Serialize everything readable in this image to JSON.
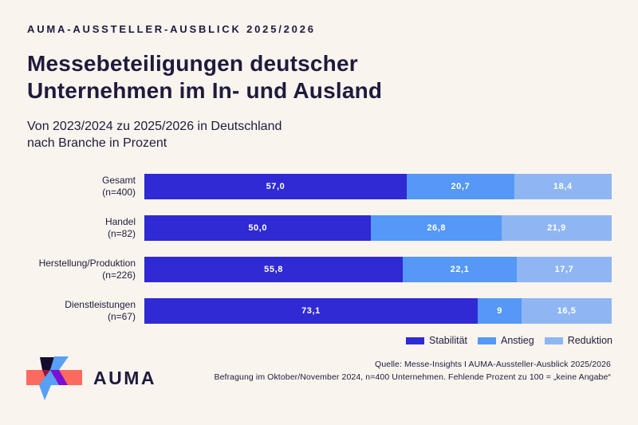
{
  "page": {
    "background": "#f9f4ee",
    "text_color": "#201a3c"
  },
  "header": {
    "kicker": "AUMA-AUSSTELLER-AUSBLICK 2025/2026",
    "title": "Messebeteiligungen deutscher\nUnternehmen im In- und Ausland",
    "subtitle": "Von 2023/2024 zu 2025/2026 in Deutschland\nnach Branche in Prozent"
  },
  "chart_data": {
    "type": "bar",
    "orientation": "horizontal_stacked",
    "unit": "percent",
    "xlim": [
      0,
      100
    ],
    "grid": false,
    "legend_position": "bottom_right",
    "render_note": "each_row_rendered_full_width_segments_proportional",
    "categories": [
      "Gesamt\n(n=400)",
      "Handel\n(n=82)",
      "Herstellung/Produktion\n(n=226)",
      "Dienstleistungen\n(n=67)"
    ],
    "series": [
      {
        "name": "Stabilität",
        "color": "#2f2ad3",
        "values": [
          57.0,
          50.0,
          55.8,
          73.1
        ],
        "labels": [
          "57,0",
          "50,0",
          "55,8",
          "73,1"
        ]
      },
      {
        "name": "Anstieg",
        "color": "#5598f6",
        "values": [
          20.7,
          26.8,
          22.1,
          9.0
        ],
        "labels": [
          "20,7",
          "26,8",
          "22,1",
          "9"
        ]
      },
      {
        "name": "Reduktion",
        "color": "#8fb6f3",
        "values": [
          18.4,
          21.9,
          17.7,
          16.5
        ],
        "labels": [
          "18,4",
          "21,9",
          "17,7",
          "16,5"
        ]
      }
    ]
  },
  "footer": {
    "source": "Quelle: Messe-Insights I AUMA-Aussteller-Ausblick 2025/2026",
    "note": "Befragung im Oktober/November 2024, n=400 Unternehmen. Fehlende Prozent zu 100 = „keine Angabe“"
  },
  "logo": {
    "wordmark": "AUMA",
    "colors": {
      "coral": "#fb6a5e",
      "dark": "#150b2d",
      "maroon": "#8e1743",
      "blue": "#58a0f5",
      "purple": "#7a10d4"
    }
  }
}
